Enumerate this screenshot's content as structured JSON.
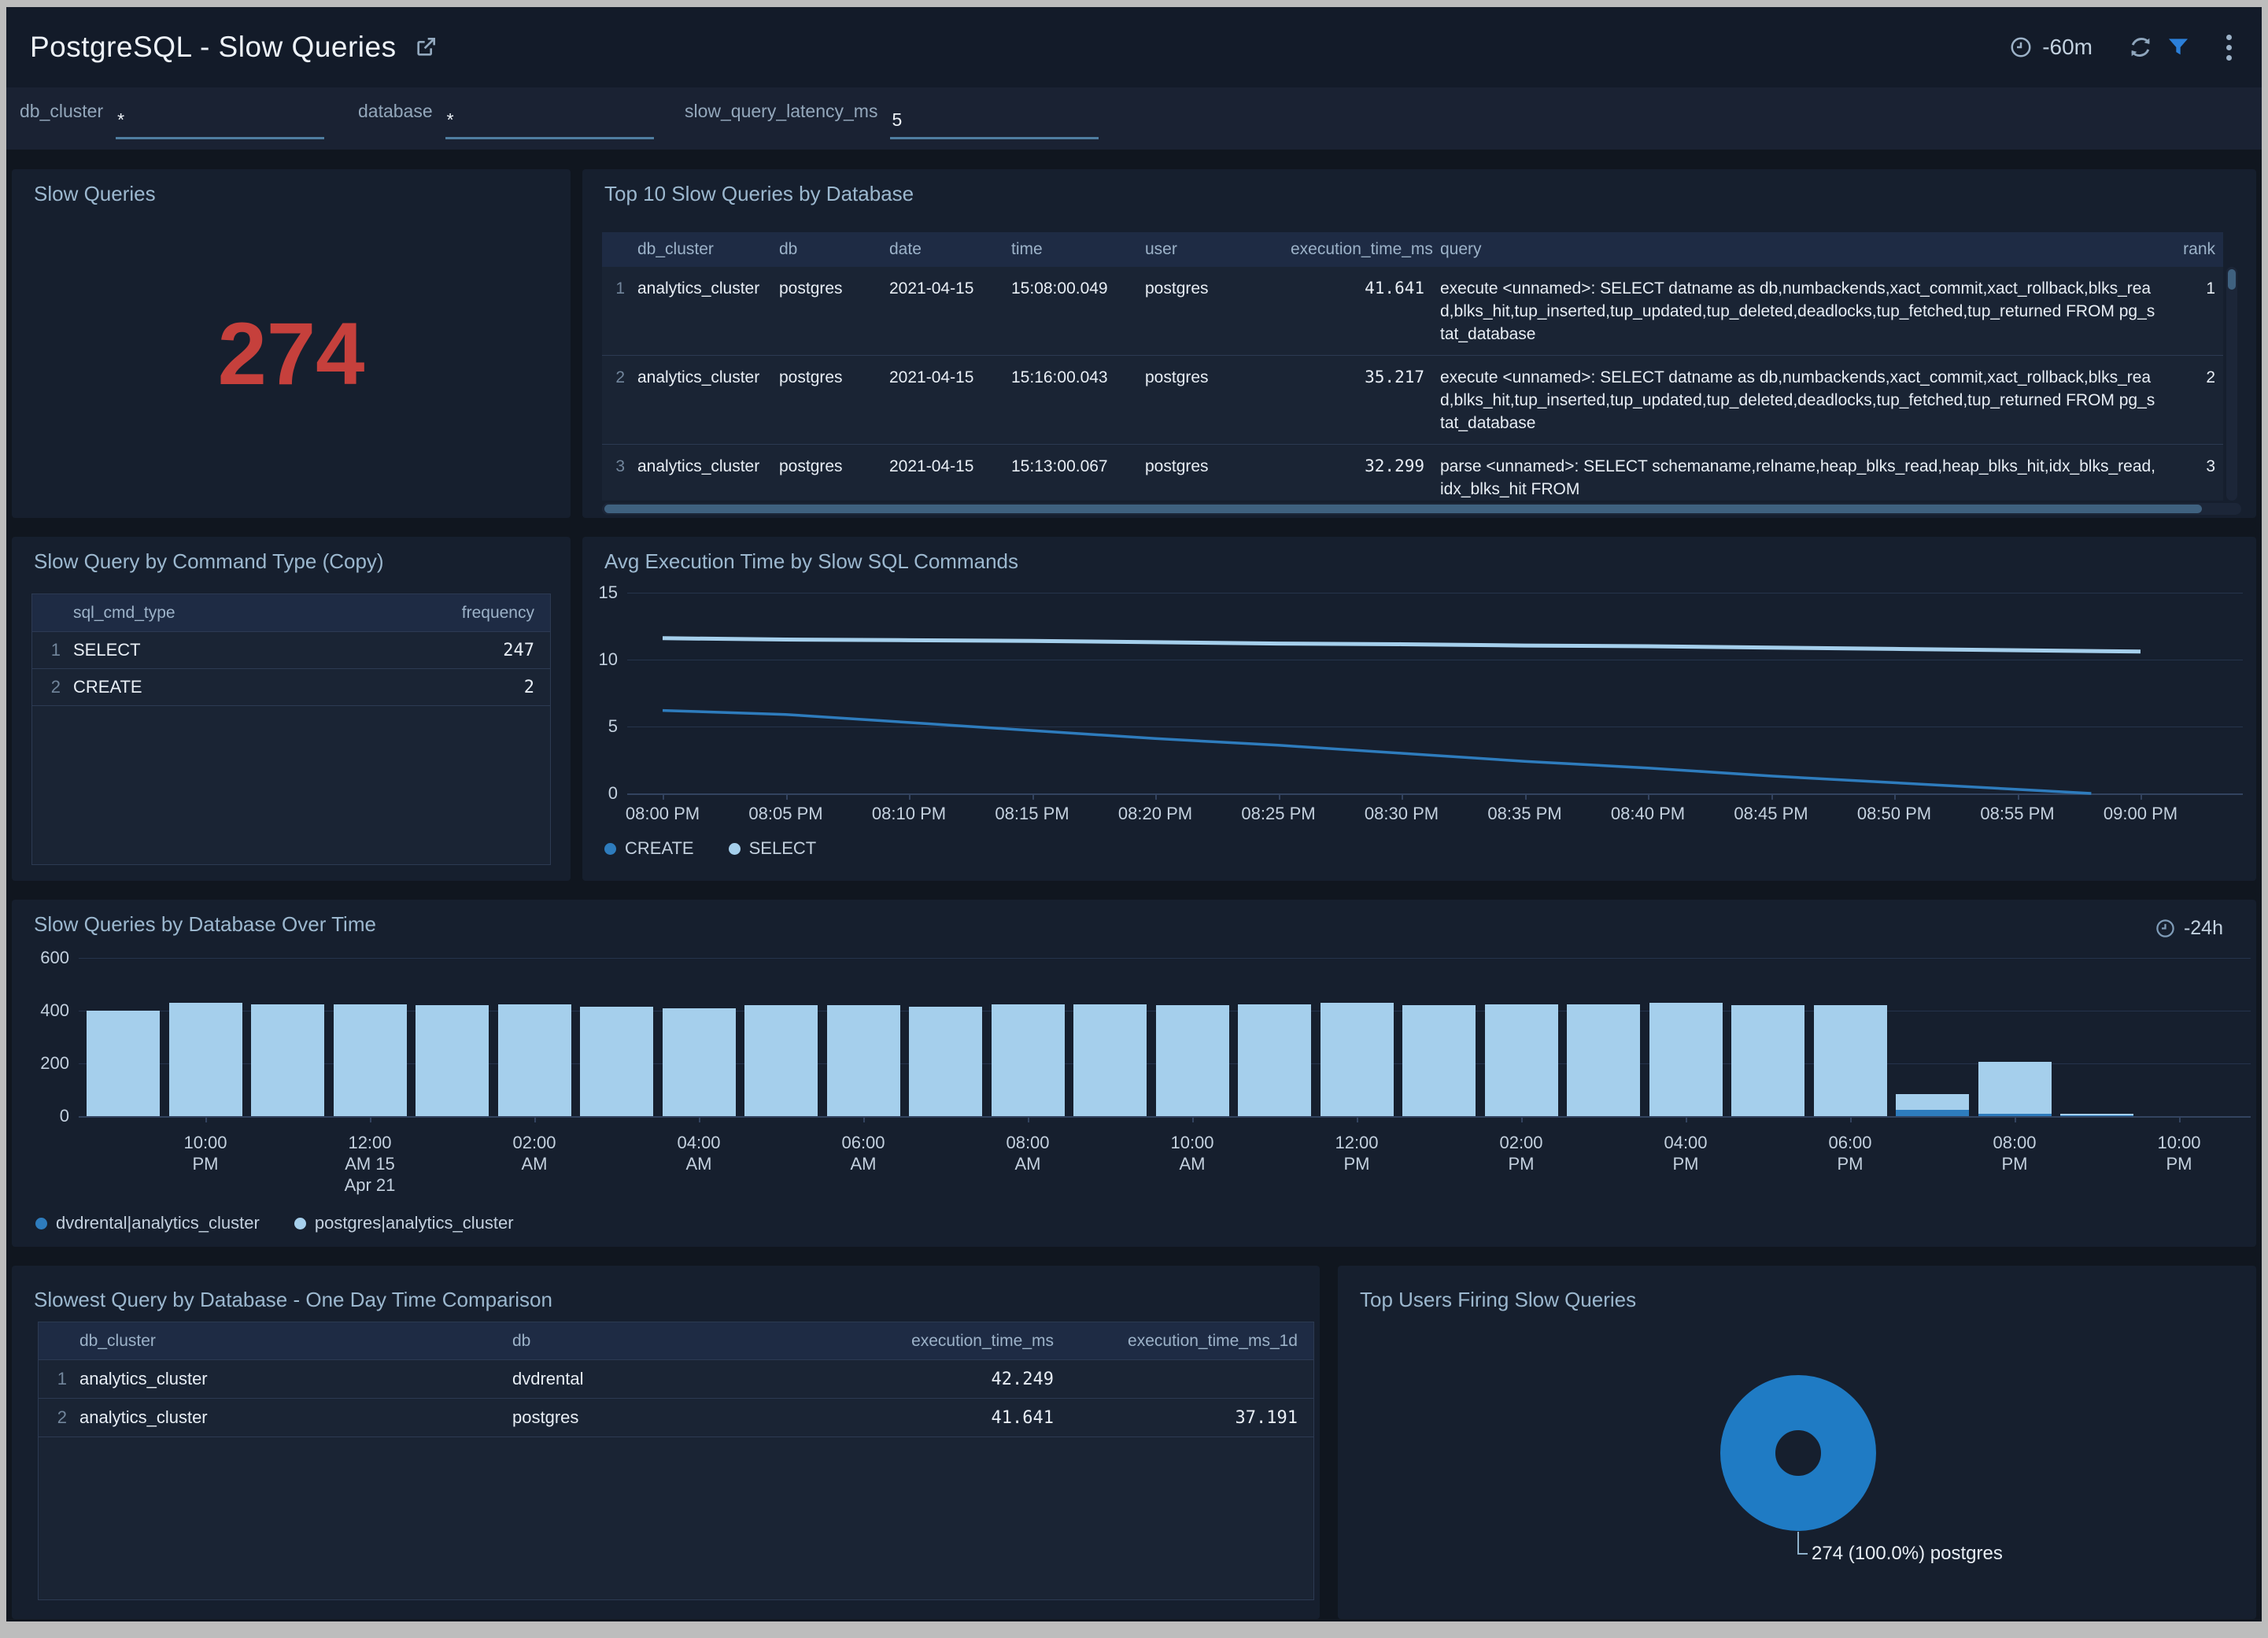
{
  "header": {
    "title": "PostgreSQL - Slow Queries",
    "time_range": "-60m",
    "icons": [
      "open-in-new-icon",
      "clock-icon",
      "refresh-icon",
      "filter-icon",
      "kebab-menu-icon"
    ]
  },
  "filters": [
    {
      "label": "db_cluster",
      "value": "*"
    },
    {
      "label": "database",
      "value": "*"
    },
    {
      "label": "slow_query_latency_ms",
      "value": "5"
    }
  ],
  "panels": {
    "slow_queries": {
      "title": "Slow Queries",
      "value": "274"
    },
    "top10": {
      "title": "Top 10 Slow Queries by Database",
      "columns": [
        "db_cluster",
        "db",
        "date",
        "time",
        "user",
        "execution_time_ms",
        "query",
        "rank"
      ],
      "rows": [
        {
          "index": "1",
          "db_cluster": "analytics_cluster",
          "db": "postgres",
          "date": "2021-04-15",
          "time": "15:08:00.049",
          "user": "postgres",
          "execution_time_ms": "41.641",
          "query": "execute <unnamed>: SELECT datname as db,numbackends,xact_commit,xact_rollback,blks_read,blks_hit,tup_inserted,tup_updated,tup_deleted,deadlocks,tup_fetched,tup_returned FROM pg_stat_database",
          "rank": "1"
        },
        {
          "index": "2",
          "db_cluster": "analytics_cluster",
          "db": "postgres",
          "date": "2021-04-15",
          "time": "15:16:00.043",
          "user": "postgres",
          "execution_time_ms": "35.217",
          "query": "execute <unnamed>: SELECT datname as db,numbackends,xact_commit,xact_rollback,blks_read,blks_hit,tup_inserted,tup_updated,tup_deleted,deadlocks,tup_fetched,tup_returned FROM pg_stat_database",
          "rank": "2"
        },
        {
          "index": "3",
          "db_cluster": "analytics_cluster",
          "db": "postgres",
          "date": "2021-04-15",
          "time": "15:13:00.067",
          "user": "postgres",
          "execution_time_ms": "32.299",
          "query": "parse <unnamed>: SELECT schemaname,relname,heap_blks_read,heap_blks_hit,idx_blks_read,idx_blks_hit FROM",
          "rank": "3"
        }
      ]
    },
    "cmd_type": {
      "title": "Slow Query by Command Type (Copy)",
      "columns": [
        "sql_cmd_type",
        "frequency"
      ],
      "rows": [
        {
          "index": "1",
          "sql_cmd_type": "SELECT",
          "frequency": "247"
        },
        {
          "index": "2",
          "sql_cmd_type": "CREATE",
          "frequency": "2"
        }
      ]
    },
    "avg_exec": {
      "title": "Avg Execution Time by Slow SQL Commands"
    },
    "over_time": {
      "title": "Slow Queries by Database Over Time",
      "time_range": "-24h"
    },
    "slowest": {
      "title": "Slowest Query by Database - One Day Time Comparison",
      "columns": [
        "db_cluster",
        "db",
        "execution_time_ms",
        "execution_time_ms_1d"
      ],
      "rows": [
        {
          "index": "1",
          "db_cluster": "analytics_cluster",
          "db": "dvdrental",
          "execution_time_ms": "42.249",
          "execution_time_ms_1d": ""
        },
        {
          "index": "2",
          "db_cluster": "analytics_cluster",
          "db": "postgres",
          "execution_time_ms": "41.641",
          "execution_time_ms_1d": "37.191"
        }
      ]
    },
    "top_users": {
      "title": "Top Users Firing Slow Queries",
      "callout": "274 (100.0%) postgres"
    }
  },
  "colors": {
    "value_red": "#c6403c",
    "create_blue": "#2e7cbd",
    "select_light_blue": "#a5cfec",
    "dvdrental_blue": "#2e7cbd",
    "postgres_light_blue": "#a5cfec",
    "donut_blue": "#1f7bc4",
    "filter_funnel_blue": "#2b7fd9",
    "input_underline": "#4f7da0"
  },
  "chart_data": [
    {
      "id": "avg_exec",
      "type": "line",
      "title": "Avg Execution Time by Slow SQL Commands",
      "ylim": [
        0,
        15
      ],
      "yticks": [
        0,
        5,
        10,
        15
      ],
      "x_ticks": [
        "08:00 PM",
        "08:05 PM",
        "08:10 PM",
        "08:15 PM",
        "08:20 PM",
        "08:25 PM",
        "08:30 PM",
        "08:35 PM",
        "08:40 PM",
        "08:45 PM",
        "08:50 PM",
        "08:55 PM",
        "09:00 PM"
      ],
      "grid": true,
      "legend_position": "bottom",
      "series": [
        {
          "name": "CREATE",
          "color": "#2e7cbd",
          "points": [
            [
              0,
              6.2
            ],
            [
              5,
              5.9
            ],
            [
              10,
              5.3
            ],
            [
              15,
              4.7
            ],
            [
              20,
              4.1
            ],
            [
              25,
              3.6
            ],
            [
              30,
              3.0
            ],
            [
              35,
              2.4
            ],
            [
              40,
              1.9
            ],
            [
              45,
              1.3
            ],
            [
              50,
              0.8
            ],
            [
              55,
              0.3
            ],
            [
              58,
              0
            ]
          ]
        },
        {
          "name": "SELECT",
          "color": "#a5cfec",
          "points": [
            [
              0,
              11.6
            ],
            [
              5,
              11.5
            ],
            [
              10,
              11.45
            ],
            [
              15,
              11.4
            ],
            [
              20,
              11.3
            ],
            [
              25,
              11.2
            ],
            [
              30,
              11.15
            ],
            [
              35,
              11.05
            ],
            [
              40,
              11.0
            ],
            [
              45,
              10.9
            ],
            [
              50,
              10.8
            ],
            [
              55,
              10.7
            ],
            [
              60,
              10.6
            ]
          ]
        }
      ]
    },
    {
      "id": "over_time",
      "type": "bar",
      "stacked": true,
      "title": "Slow Queries by Database Over Time",
      "ylim": [
        0,
        600
      ],
      "yticks": [
        0,
        200,
        400,
        600
      ],
      "grid": true,
      "legend_position": "bottom",
      "hours": [
        "9 PM",
        "10 PM",
        "11 PM",
        "12 AM",
        "1 AM",
        "2 AM",
        "3 AM",
        "4 AM",
        "5 AM",
        "6 AM",
        "7 AM",
        "8 AM",
        "9 AM",
        "10 AM",
        "11 AM",
        "12 PM",
        "1 PM",
        "2 PM",
        "3 PM",
        "4 PM",
        "5 PM",
        "6 PM",
        "7 PM",
        "8 PM",
        "9 PM"
      ],
      "series": [
        {
          "name": "dvdrental|analytics_cluster",
          "color": "#2e7cbd",
          "values": [
            0,
            0,
            0,
            0,
            0,
            0,
            0,
            0,
            0,
            0,
            0,
            0,
            0,
            0,
            0,
            0,
            0,
            0,
            0,
            0,
            0,
            0,
            25,
            10,
            2
          ]
        },
        {
          "name": "postgres|analytics_cluster",
          "color": "#a5cfec",
          "values": [
            400,
            430,
            425,
            425,
            420,
            425,
            415,
            410,
            420,
            420,
            415,
            425,
            425,
            420,
            425,
            430,
            420,
            425,
            425,
            430,
            420,
            420,
            60,
            195,
            8
          ]
        }
      ],
      "tick_labels": [
        {
          "bar_index": 1,
          "lines": [
            "10:00",
            "PM"
          ]
        },
        {
          "bar_index": 3,
          "lines": [
            "12:00",
            "AM 15",
            "Apr 21"
          ]
        },
        {
          "bar_index": 5,
          "lines": [
            "02:00",
            "AM"
          ]
        },
        {
          "bar_index": 7,
          "lines": [
            "04:00",
            "AM"
          ]
        },
        {
          "bar_index": 9,
          "lines": [
            "06:00",
            "AM"
          ]
        },
        {
          "bar_index": 11,
          "lines": [
            "08:00",
            "AM"
          ]
        },
        {
          "bar_index": 13,
          "lines": [
            "10:00",
            "AM"
          ]
        },
        {
          "bar_index": 15,
          "lines": [
            "12:00",
            "PM"
          ]
        },
        {
          "bar_index": 17,
          "lines": [
            "02:00",
            "PM"
          ]
        },
        {
          "bar_index": 19,
          "lines": [
            "04:00",
            "PM"
          ]
        },
        {
          "bar_index": 21,
          "lines": [
            "06:00",
            "PM"
          ]
        },
        {
          "bar_index": 23,
          "lines": [
            "08:00",
            "PM"
          ]
        },
        {
          "bar_index": 25,
          "lines": [
            "10:00",
            "PM"
          ]
        }
      ]
    },
    {
      "id": "top_users",
      "type": "pie",
      "donut": true,
      "title": "Top Users Firing Slow Queries",
      "slices": [
        {
          "label": "postgres",
          "value": 274,
          "percent": "100.0",
          "color": "#1f7bc4"
        }
      ],
      "callout": "274 (100.0%) postgres"
    }
  ]
}
